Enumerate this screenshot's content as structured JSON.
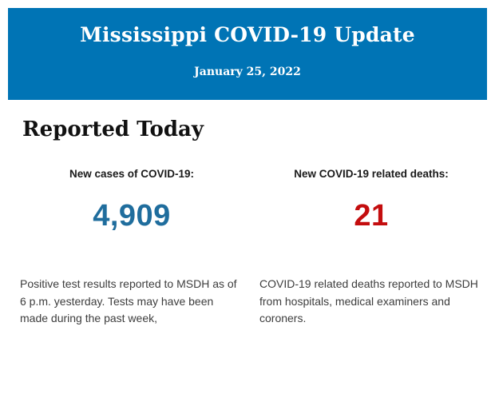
{
  "header": {
    "title": "Mississippi COVID-19 Update",
    "date": "January 25, 2022",
    "background_color": "#0074B5",
    "text_color": "#FFFFFF"
  },
  "section": {
    "title": "Reported Today"
  },
  "stats": {
    "cases": {
      "label": "New cases of COVID-19:",
      "value": "4,909",
      "value_color": "#1F6D9D",
      "description": "Positive test results reported to MSDH as of 6 p.m. yesterday. Tests may have been made during the past week,"
    },
    "deaths": {
      "label": "New COVID-19 related deaths:",
      "value": "21",
      "value_color": "#C40D0E",
      "description": "COVID-19 related deaths reported to MSDH from hospitals, medical examiners and coroners."
    }
  }
}
